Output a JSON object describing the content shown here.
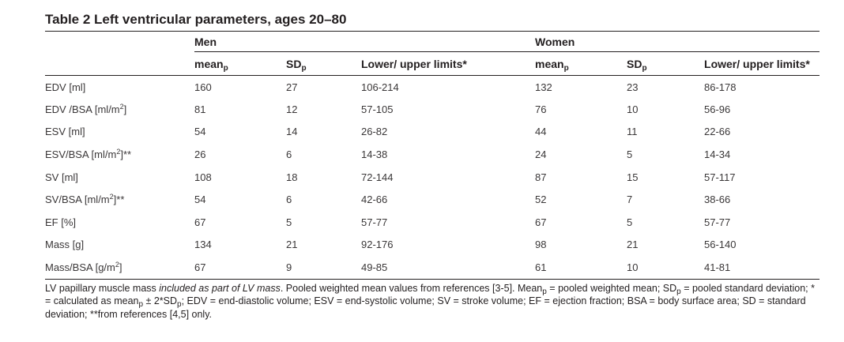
{
  "title": "Table 2 Left ventricular parameters, ages 20–80",
  "groups": [
    "Men",
    "Women"
  ],
  "subheaders": {
    "mean_base": "mean",
    "mean_sub": "p",
    "sd_base": "SD",
    "sd_sub": "p",
    "limits": "Lower/ upper limits*"
  },
  "rows": [
    {
      "label": "EDV [ml]",
      "label_sup": "",
      "label_after": "",
      "men": [
        "160",
        "27",
        "106-214"
      ],
      "women": [
        "132",
        "23",
        "86-178"
      ]
    },
    {
      "label": "EDV /BSA [ml/m",
      "label_sup": "2",
      "label_after": "]",
      "men": [
        "81",
        "12",
        "57-105"
      ],
      "women": [
        "76",
        "10",
        "56-96"
      ]
    },
    {
      "label": "ESV [ml]",
      "label_sup": "",
      "label_after": "",
      "men": [
        "54",
        "14",
        "26-82"
      ],
      "women": [
        "44",
        "11",
        "22-66"
      ]
    },
    {
      "label": "ESV/BSA [ml/m",
      "label_sup": "2",
      "label_after": "]**",
      "men": [
        "26",
        "6",
        "14-38"
      ],
      "women": [
        "24",
        "5",
        "14-34"
      ]
    },
    {
      "label": "SV [ml]",
      "label_sup": "",
      "label_after": "",
      "men": [
        "108",
        "18",
        "72-144"
      ],
      "women": [
        "87",
        "15",
        "57-117"
      ]
    },
    {
      "label": "SV/BSA [ml/m",
      "label_sup": "2",
      "label_after": "]**",
      "men": [
        "54",
        "6",
        "42-66"
      ],
      "women": [
        "52",
        "7",
        "38-66"
      ]
    },
    {
      "label": "EF [%]",
      "label_sup": "",
      "label_after": "",
      "men": [
        "67",
        "5",
        "57-77"
      ],
      "women": [
        "67",
        "5",
        "57-77"
      ]
    },
    {
      "label": "Mass [g]",
      "label_sup": "",
      "label_after": "",
      "men": [
        "134",
        "21",
        "92-176"
      ],
      "women": [
        "98",
        "21",
        "56-140"
      ]
    },
    {
      "label": "Mass/BSA [g/m",
      "label_sup": "2",
      "label_after": "]",
      "men": [
        "67",
        "9",
        "49-85"
      ],
      "women": [
        "61",
        "10",
        "41-81"
      ]
    }
  ],
  "footnote": {
    "pre": "LV papillary muscle mass ",
    "italic": "included as part of LV mass",
    "post1": ". Pooled weighted mean values from references [3-5]. Mean",
    "sub1": "p",
    "post2": " = pooled weighted mean; SD",
    "sub2": "p",
    "post3": " = pooled standard deviation; * = calculated as mean",
    "sub3": "p",
    "post4": " ± 2*SD",
    "sub4": "p",
    "post5": "; EDV = end-diastolic volume; ESV = end-systolic volume; SV = stroke volume; EF = ejection fraction; BSA = body surface area; SD = standard deviation; **from references [4,5] only."
  }
}
